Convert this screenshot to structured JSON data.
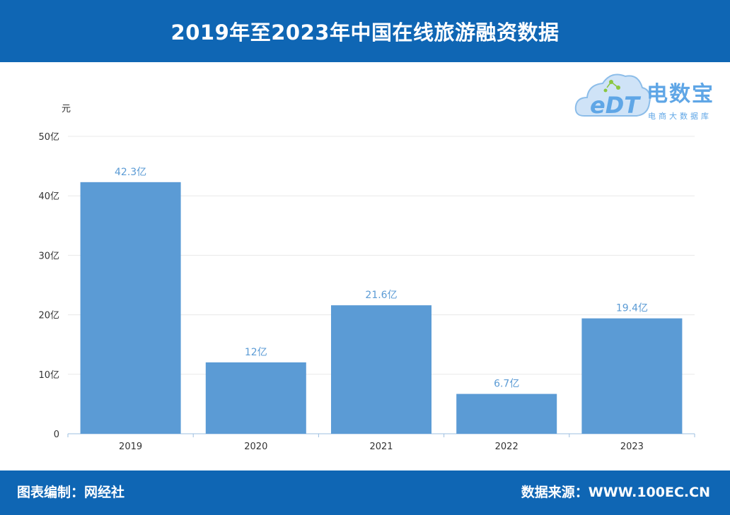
{
  "header": {
    "title": "2019年至2023年中国在线旅游融资数据"
  },
  "logo": {
    "brand": "电数宝",
    "brand_latin": "eDT",
    "subtitle": "电商大数据库"
  },
  "footer": {
    "left": "图表编制：网经社",
    "right": "数据来源：WWW.100EC.CN"
  },
  "colors": {
    "header_bg": "#0f66b4",
    "bar": "#5b9bd5",
    "label": "#5b9bd5"
  },
  "chart_data": {
    "type": "bar",
    "title": "2019年至2023年中国在线旅游融资数据",
    "ylabel": "元",
    "categories": [
      "2019",
      "2020",
      "2021",
      "2022",
      "2023"
    ],
    "values": [
      42.3,
      12,
      21.6,
      6.7,
      19.4
    ],
    "data_labels": [
      "42.3亿",
      "12亿",
      "21.6亿",
      "6.7亿",
      "19.4亿"
    ],
    "ylim": [
      0,
      50
    ],
    "yticks": [
      0,
      10,
      20,
      30,
      40,
      50
    ],
    "ytick_labels": [
      "0",
      "10亿",
      "20亿",
      "30亿",
      "40亿",
      "50亿"
    ],
    "grid": true,
    "legend": "none"
  }
}
